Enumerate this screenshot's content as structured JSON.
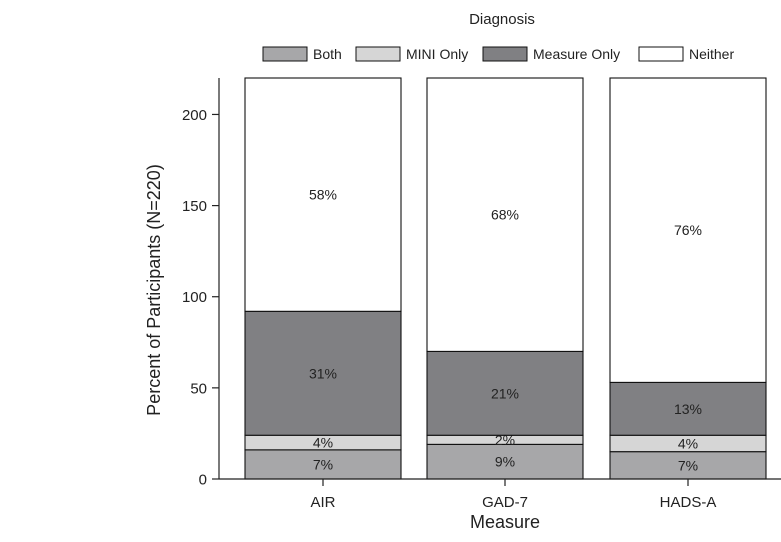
{
  "chart_data": {
    "type": "bar",
    "stacked": true,
    "categories": [
      "AIR",
      "GAD-7",
      "HADS-A"
    ],
    "xlabel": "Measure",
    "ylabel": "Percent of Participants (N=220)",
    "ylim": [
      0,
      220
    ],
    "yticks": [
      0,
      50,
      100,
      150,
      200
    ],
    "grid": false,
    "legend": {
      "title": "Diagnosis",
      "placement": "top",
      "entries": [
        "Both",
        "MINI Only",
        "Measure Only",
        "Neither"
      ]
    },
    "series": [
      {
        "name": "Both",
        "color": "#a7a7a9",
        "values": [
          16,
          19,
          15
        ],
        "labels": [
          "7%",
          "9%",
          "7%"
        ]
      },
      {
        "name": "MINI Only",
        "color": "#d6d6d6",
        "values": [
          8,
          5,
          9
        ],
        "labels": [
          "4%",
          "2%",
          "4%"
        ]
      },
      {
        "name": "Measure Only",
        "color": "#808083",
        "values": [
          68,
          46,
          29
        ],
        "labels": [
          "31%",
          "21%",
          "13%"
        ]
      },
      {
        "name": "Neither",
        "color": "#ffffff",
        "values": [
          128,
          150,
          167
        ],
        "labels": [
          "58%",
          "68%",
          "76%"
        ]
      }
    ]
  }
}
